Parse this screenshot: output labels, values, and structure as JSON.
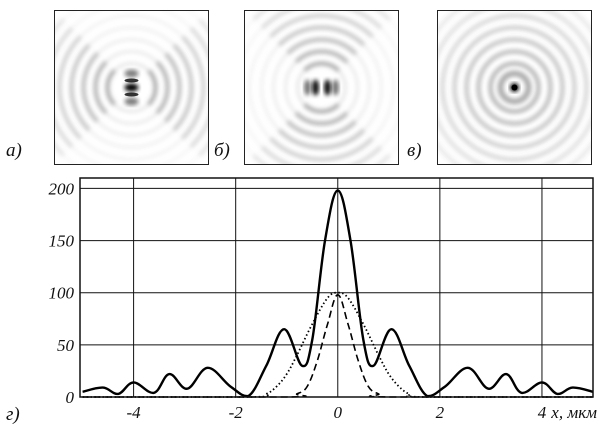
{
  "panels": [
    {
      "id": "a",
      "label": "а)",
      "pattern": "dipole-vertical"
    },
    {
      "id": "b",
      "label": "б)",
      "pattern": "dipole-horizontal"
    },
    {
      "id": "c",
      "label": "в)",
      "pattern": "radial-spot"
    }
  ],
  "chart_label": "г)",
  "chart_data": {
    "type": "line",
    "title": "",
    "xlabel": "x, мкм",
    "ylabel": "",
    "xlim": [
      -5.05,
      5.0
    ],
    "ylim": [
      0,
      210
    ],
    "xticks": [
      -4,
      -2,
      0,
      2,
      4
    ],
    "xtick_labels": [
      "-4",
      "-2",
      "0",
      "2",
      "4"
    ],
    "yticks": [
      0,
      50,
      100,
      150,
      200
    ],
    "ytick_labels": [
      "0",
      "50",
      "100",
      "150",
      "200"
    ],
    "grid": true,
    "series": [
      {
        "style": "solid",
        "x": [
          -5.0,
          -4.6,
          -4.3,
          -4.0,
          -3.6,
          -3.3,
          -2.95,
          -2.55,
          -2.1,
          -1.75,
          -1.4,
          -1.05,
          -0.7,
          -0.5,
          -0.25,
          0,
          0.25,
          0.5,
          0.7,
          1.05,
          1.4,
          1.75,
          2.1,
          2.55,
          2.95,
          3.3,
          3.6,
          4.0,
          4.3,
          4.6,
          5.0
        ],
        "y": [
          5,
          9,
          3,
          14,
          4,
          22,
          8,
          28,
          10,
          1,
          30,
          65,
          30,
          55,
          150,
          198,
          150,
          55,
          30,
          65,
          30,
          1,
          10,
          28,
          8,
          22,
          4,
          14,
          3,
          9,
          5
        ]
      },
      {
        "style": "dashed",
        "x": [
          -5.0,
          -1.0,
          -0.8,
          -0.6,
          -0.4,
          -0.2,
          0,
          0.2,
          0.4,
          0.6,
          0.8,
          1.0,
          5.0
        ],
        "y": [
          0,
          0,
          3,
          10,
          35,
          70,
          98,
          70,
          35,
          10,
          3,
          0,
          0
        ]
      },
      {
        "style": "dotted",
        "x": [
          -5.0,
          -1.7,
          -1.4,
          -1.2,
          -1.0,
          -0.8,
          -0.5,
          -0.2,
          0,
          0.2,
          0.5,
          0.8,
          1.0,
          1.2,
          1.4,
          1.7,
          5.0
        ],
        "y": [
          0,
          0,
          3,
          10,
          22,
          40,
          70,
          95,
          100,
          95,
          70,
          40,
          22,
          10,
          3,
          0,
          0
        ]
      }
    ]
  }
}
